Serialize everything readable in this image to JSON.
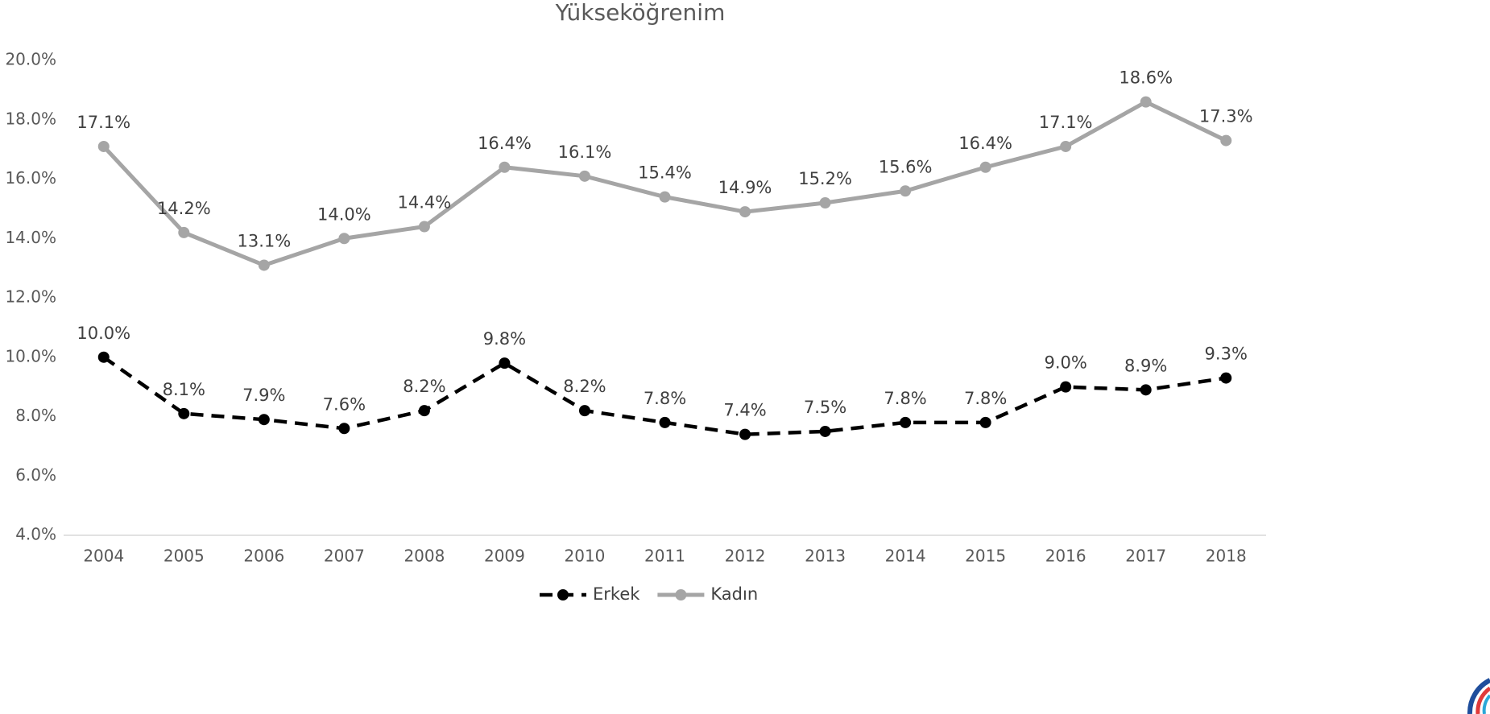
{
  "chart_data": {
    "type": "line",
    "title": "Yükseköğrenim",
    "categories": [
      "2004",
      "2005",
      "2006",
      "2007",
      "2008",
      "2009",
      "2010",
      "2011",
      "2012",
      "2013",
      "2014",
      "2015",
      "2016",
      "2017",
      "2018"
    ],
    "series": [
      {
        "name": "Erkek",
        "color": "#000000",
        "dashed": true,
        "values": [
          10.0,
          8.1,
          7.9,
          7.6,
          8.2,
          9.8,
          8.2,
          7.8,
          7.4,
          7.5,
          7.8,
          7.8,
          9.0,
          8.9,
          9.3
        ],
        "value_labels": [
          "10.0%",
          "8.1%",
          "7.9%",
          "7.6%",
          "8.2%",
          "9.8%",
          "8.2%",
          "7.8%",
          "7.4%",
          "7.5%",
          "7.8%",
          "7.8%",
          "9.0%",
          "8.9%",
          "9.3%"
        ]
      },
      {
        "name": "Kadın",
        "color": "#a5a5a5",
        "dashed": false,
        "values": [
          17.1,
          14.2,
          13.1,
          14.0,
          14.4,
          16.4,
          16.1,
          15.4,
          14.9,
          15.2,
          15.6,
          16.4,
          17.1,
          18.6,
          17.3
        ],
        "value_labels": [
          "17.1%",
          "14.2%",
          "13.1%",
          "14.0%",
          "14.4%",
          "16.4%",
          "16.1%",
          "15.4%",
          "14.9%",
          "15.2%",
          "15.6%",
          "16.4%",
          "17.1%",
          "18.6%",
          "17.3%"
        ]
      }
    ],
    "ylim": [
      4,
      20
    ],
    "yticks": [
      {
        "value": 4,
        "label": "4.0%"
      },
      {
        "value": 6,
        "label": "6.0%"
      },
      {
        "value": 8,
        "label": "8.0%"
      },
      {
        "value": 10,
        "label": "10.0%"
      },
      {
        "value": 12,
        "label": "12.0%"
      },
      {
        "value": 14,
        "label": "14.0%"
      },
      {
        "value": 16,
        "label": "16.0%"
      },
      {
        "value": 18,
        "label": "18.0%"
      },
      {
        "value": 20,
        "label": "20.0%"
      }
    ],
    "grid": false,
    "legend": "bottom"
  }
}
